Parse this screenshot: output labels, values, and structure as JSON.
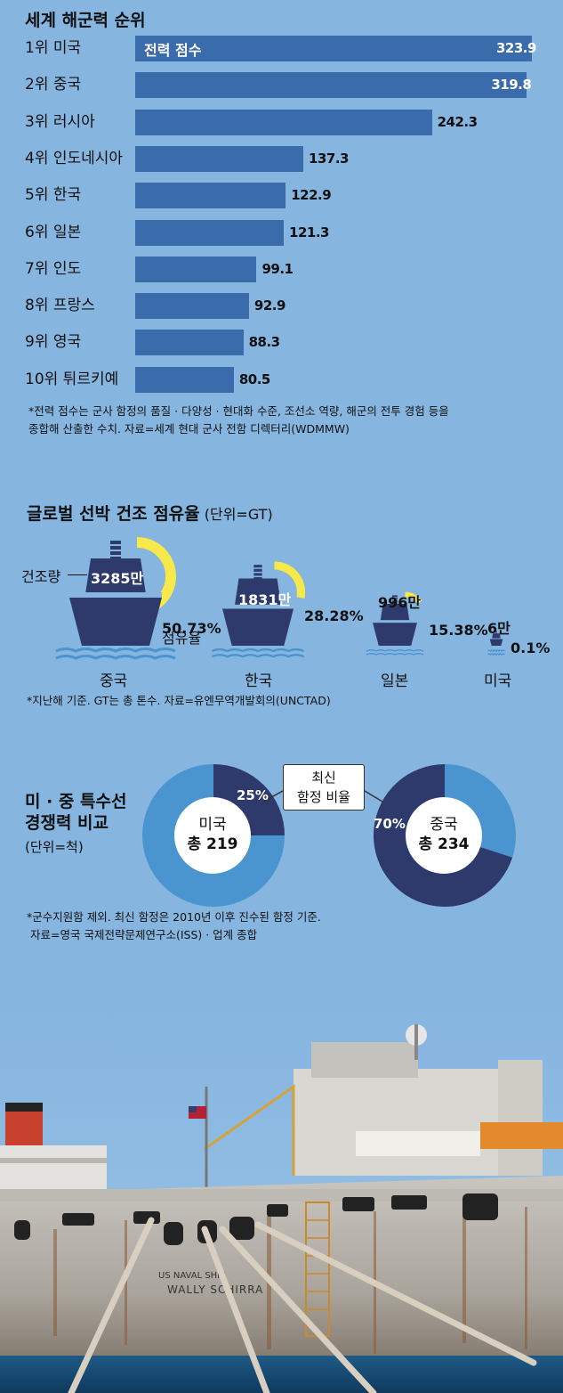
{
  "navy_ranking": {
    "title": "세계 해군력 순위",
    "note_line1": "*전력 점수는 군사 함정의 품질 · 다양성 · 현대화 수준, 조선소 역량, 해군의 전투 경험 등을",
    "note_line2": "종합해 산출한 수치. 자료=세계 현대 군사 전함 디렉터리(WDMMW)"
  },
  "shipbuilding": {
    "title": "글로벌 선박 건조 점유율",
    "unit": "(단위=GT)",
    "label_volume": "건조량",
    "label_share": "점유율",
    "note": "*지난해 기준. GT는 총 톤수. 자료=유엔무역개발회의(UNCTAD)"
  },
  "special_ships": {
    "title_line1": "미 · 중 특수선",
    "title_line2": "경쟁력 비교",
    "unit": "(단위=척)",
    "callout_line1": "최신",
    "callout_line2": "함정 비율",
    "note_line1": "*군수지원함 제외. 최신 함정은 2010년 이후 진수된 함정 기준.",
    "note_line2": "자료=영국 국제전략문제연구소(ISS) · 업계 종합"
  },
  "photo": {
    "hull_text1": "US NAVAL SHIP",
    "hull_text2": "WALLY SCHIRRA"
  },
  "colors": {
    "background": "#86b5e0",
    "bar": "#3a6bab",
    "navy": "#2d3a6b",
    "light_blue": "#4a94d0",
    "yellow": "#f7e94a"
  },
  "chart_data": [
    {
      "type": "bar",
      "title": "세계 해군력 순위",
      "series_label": "전력 점수",
      "categories": [
        "1위 미국",
        "2위 중국",
        "3위 러시아",
        "4위 인도네시아",
        "5위 한국",
        "6위 일본",
        "7위 인도",
        "8위 프랑스",
        "9위 영국",
        "10위 튀르키예"
      ],
      "values": [
        323.9,
        319.8,
        242.3,
        137.3,
        122.9,
        121.3,
        99.1,
        92.9,
        88.3,
        80.5
      ],
      "value_labels": [
        "323.9",
        "319.8",
        "242.3",
        "137.3",
        "122.9",
        "121.3",
        "99.1",
        "92.9",
        "88.3",
        "80.5"
      ],
      "xlim": [
        0,
        323.9
      ]
    },
    {
      "type": "pie",
      "title": "글로벌 선박 건조 점유율",
      "categories": [
        "중국",
        "한국",
        "일본",
        "미국"
      ],
      "volume_labels": [
        "3285만",
        "1831만",
        "996만",
        "6만"
      ],
      "volumes": [
        32850000,
        18310000,
        9960000,
        60000
      ],
      "share_labels": [
        "50.73%",
        "28.28%",
        "15.38%",
        "0.1%"
      ],
      "shares": [
        50.73,
        28.28,
        15.38,
        0.1
      ]
    },
    {
      "type": "pie",
      "title": "미 · 중 특수선 경쟁력 비교",
      "items": [
        {
          "country": "미국",
          "total_label": "총 219",
          "total": 219,
          "recent_pct_label": "25%",
          "recent_pct": 25
        },
        {
          "country": "중국",
          "total_label": "총 234",
          "total": 234,
          "recent_pct_label": "70%",
          "recent_pct": 70
        }
      ]
    }
  ]
}
